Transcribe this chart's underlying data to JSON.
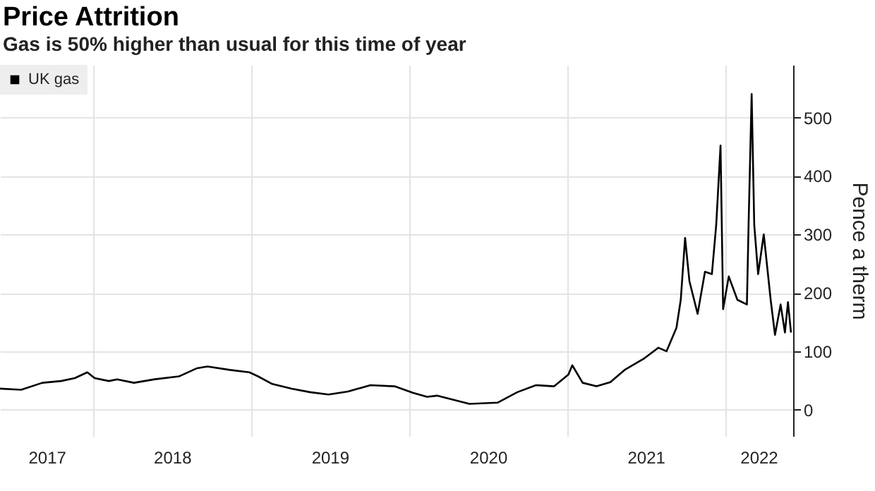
{
  "chart_data": {
    "type": "line",
    "title": "Price Attrition",
    "subtitle": "Gas is 50% higher than usual for this time of year",
    "y2label": "Pence a therm",
    "x": [
      "2017-05-30",
      "2017-07-18",
      "2017-09-05",
      "2017-10-18",
      "2017-11-19",
      "2017-12-18",
      "2018-01-04",
      "2018-02-06",
      "2018-02-25",
      "2018-04-05",
      "2018-05-23",
      "2018-07-18",
      "2018-08-29",
      "2018-09-22",
      "2018-11-13",
      "2018-12-28",
      "2019-01-17",
      "2019-02-19",
      "2019-04-05",
      "2019-05-17",
      "2019-06-29",
      "2019-08-13",
      "2019-10-04",
      "2019-11-29",
      "2020-01-10",
      "2020-02-12",
      "2020-03-06",
      "2020-05-20",
      "2020-07-24",
      "2020-09-08",
      "2020-10-21",
      "2020-12-02",
      "2021-01-04",
      "2021-01-13",
      "2021-02-06",
      "2021-03-10",
      "2021-04-11",
      "2021-05-14",
      "2021-06-29",
      "2021-07-31",
      "2021-08-19",
      "2021-09-11",
      "2021-09-21",
      "2021-10-01",
      "2021-10-11",
      "2021-10-30",
      "2021-11-16",
      "2021-12-02",
      "2021-12-12",
      "2021-12-22",
      "2021-12-28",
      "2022-01-10",
      "2022-01-30",
      "2022-02-21",
      "2022-02-25",
      "2022-03-04",
      "2022-03-10",
      "2022-03-19",
      "2022-04-01",
      "2022-04-17",
      "2022-04-27",
      "2022-05-10",
      "2022-05-20",
      "2022-05-27",
      "2022-06-03"
    ],
    "series": [
      {
        "name": "UK gas",
        "color": "#000000",
        "axis": "y2",
        "values": [
          36,
          34,
          46,
          49,
          54,
          64,
          54,
          49,
          52,
          46,
          52,
          57,
          71,
          74,
          68,
          64,
          57,
          44,
          36,
          30,
          26,
          31,
          42,
          40,
          29,
          22,
          24,
          10,
          12,
          30,
          42,
          40,
          60,
          76,
          46,
          40,
          47,
          68,
          88,
          106,
          100,
          140,
          188,
          294,
          220,
          164,
          236,
          232,
          316,
          452,
          172,
          228,
          188,
          180,
          320,
          540,
          316,
          232,
          300,
          188,
          128,
          180,
          132,
          184,
          132
        ]
      }
    ],
    "xlim": [
      "2017-05-30",
      "2022-06-08"
    ],
    "xticks": [
      {
        "value": "2017-09-15",
        "label": "2017"
      },
      {
        "value": "2018-01-01",
        "label": null
      },
      {
        "value": "2018-07-02",
        "label": "2018"
      },
      {
        "value": "2019-01-01",
        "label": null
      },
      {
        "value": "2019-07-02",
        "label": "2019"
      },
      {
        "value": "2020-01-01",
        "label": null
      },
      {
        "value": "2020-07-02",
        "label": "2020"
      },
      {
        "value": "2021-01-01",
        "label": null
      },
      {
        "value": "2021-07-02",
        "label": "2021"
      },
      {
        "value": "2022-01-01",
        "label": null
      },
      {
        "value": "2022-03-20",
        "label": "2022"
      }
    ],
    "y2lim": [
      -45,
      590
    ],
    "y2ticks": [
      0,
      100,
      200,
      300,
      400,
      500
    ],
    "grid": true,
    "legend": "top left",
    "marker": "none",
    "line_style": "solid"
  }
}
